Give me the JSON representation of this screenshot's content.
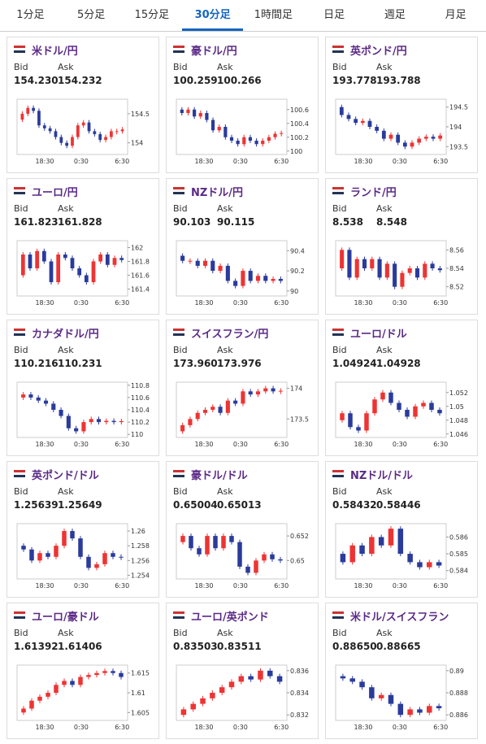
{
  "tabs": {
    "items": [
      "1分足",
      "5分足",
      "15分足",
      "30分足",
      "1時間足",
      "日足",
      "週足",
      "月足"
    ],
    "active": 3
  },
  "bid_label": "Bid",
  "ask_label": "Ask",
  "cards": [
    {
      "pair": "米ドル/円",
      "bid": "154.230",
      "ask": "154.232",
      "chart": {
        "type": "candlestick",
        "ylim": [
          153.8,
          154.75
        ],
        "yticks": [
          154.5,
          154
        ],
        "xticks": [
          "18:30",
          "0:30",
          "6:30"
        ],
        "closes": [
          154.4,
          154.5,
          154.6,
          154.55,
          154.3,
          154.25,
          154.2,
          154.1,
          154.0,
          153.95,
          154.1,
          154.3,
          154.35,
          154.2,
          154.15,
          154.05,
          154.1,
          154.2,
          154.2,
          154.23
        ]
      }
    },
    {
      "pair": "豪ドル/円",
      "bid": "100.259",
      "ask": "100.266",
      "chart": {
        "type": "candlestick",
        "ylim": [
          99.95,
          100.75
        ],
        "yticks": [
          100.6,
          100.4,
          100.2,
          100
        ],
        "xticks": [
          "18:30",
          "0:30",
          "6:30"
        ],
        "closes": [
          100.6,
          100.55,
          100.6,
          100.5,
          100.55,
          100.45,
          100.3,
          100.35,
          100.2,
          100.15,
          100.1,
          100.2,
          100.15,
          100.1,
          100.15,
          100.2,
          100.25,
          100.26
        ]
      }
    },
    {
      "pair": "英ポンド/円",
      "bid": "193.778",
      "ask": "193.788",
      "chart": {
        "type": "candlestick",
        "ylim": [
          193.3,
          194.7
        ],
        "yticks": [
          194.5,
          194,
          193.5
        ],
        "xticks": [
          "18:30",
          "0:30",
          "6:30"
        ],
        "closes": [
          194.5,
          194.3,
          194.2,
          194.1,
          194.15,
          194.0,
          193.9,
          193.7,
          193.8,
          193.6,
          193.5,
          193.6,
          193.7,
          193.75,
          193.7,
          193.78
        ]
      }
    },
    {
      "pair": "ユーロ/円",
      "bid": "161.823",
      "ask": "161.828",
      "chart": {
        "type": "candlestick",
        "ylim": [
          161.3,
          162.1
        ],
        "yticks": [
          162,
          161.8,
          161.6,
          161.4
        ],
        "xticks": [
          "18:30",
          "0:30",
          "6:30"
        ],
        "closes": [
          161.6,
          161.9,
          161.7,
          161.95,
          161.8,
          161.5,
          161.9,
          161.85,
          161.7,
          161.6,
          161.5,
          161.8,
          161.9,
          161.75,
          161.85,
          161.82
        ]
      }
    },
    {
      "pair": "NZドル/円",
      "bid": "90.103",
      "ask": "90.115",
      "chart": {
        "type": "candlestick",
        "ylim": [
          89.95,
          90.5
        ],
        "yticks": [
          90.4,
          90.2,
          90
        ],
        "xticks": [
          "18:30",
          "0:30",
          "6:30"
        ],
        "closes": [
          90.35,
          90.3,
          90.3,
          90.25,
          90.3,
          90.2,
          90.25,
          90.1,
          90.05,
          90.2,
          90.1,
          90.15,
          90.1,
          90.12,
          90.1
        ]
      }
    },
    {
      "pair": "ランド/円",
      "bid": "8.538",
      "ask": "8.548",
      "chart": {
        "type": "candlestick",
        "ylim": [
          8.51,
          8.57
        ],
        "yticks": [
          8.56,
          8.54,
          8.52
        ],
        "xticks": [
          "18:30",
          "0:30",
          "6:30"
        ],
        "closes": [
          8.54,
          8.56,
          8.53,
          8.55,
          8.54,
          8.55,
          8.53,
          8.545,
          8.52,
          8.535,
          8.54,
          8.53,
          8.545,
          8.54,
          8.538
        ]
      }
    },
    {
      "pair": "カナダドル/円",
      "bid": "110.216",
      "ask": "110.231",
      "chart": {
        "type": "candlestick",
        "ylim": [
          109.95,
          110.85
        ],
        "yticks": [
          110.8,
          110.6,
          110.4,
          110.2,
          110
        ],
        "xticks": [
          "18:30",
          "0:30",
          "6:30"
        ],
        "closes": [
          110.6,
          110.65,
          110.6,
          110.55,
          110.5,
          110.4,
          110.3,
          110.1,
          110.05,
          110.2,
          110.25,
          110.2,
          110.22,
          110.2,
          110.216
        ]
      }
    },
    {
      "pair": "スイスフラン/円",
      "bid": "173.960",
      "ask": "173.976",
      "chart": {
        "type": "candlestick",
        "ylim": [
          173.2,
          174.1
        ],
        "yticks": [
          174,
          173.5
        ],
        "xticks": [
          "18:30",
          "0:30",
          "6:30"
        ],
        "closes": [
          173.3,
          173.4,
          173.5,
          173.6,
          173.65,
          173.7,
          173.6,
          173.8,
          173.75,
          173.95,
          173.9,
          173.95,
          174.0,
          173.95,
          173.96
        ]
      }
    },
    {
      "pair": "ユーロ/ドル",
      "bid": "1.04924",
      "ask": "1.04928",
      "chart": {
        "type": "candlestick",
        "ylim": [
          1.0455,
          1.0535
        ],
        "yticks": [
          1.052,
          1.05,
          1.048,
          1.046
        ],
        "xticks": [
          "18:30",
          "0:30",
          "6:30"
        ],
        "closes": [
          1.048,
          1.049,
          1.047,
          1.0465,
          1.049,
          1.051,
          1.052,
          1.0505,
          1.0495,
          1.0485,
          1.05,
          1.0505,
          1.0495,
          1.049
        ]
      }
    },
    {
      "pair": "英ポンド/ドル",
      "bid": "1.25639",
      "ask": "1.25649",
      "chart": {
        "type": "candlestick",
        "ylim": [
          1.2535,
          1.261
        ],
        "yticks": [
          1.26,
          1.258,
          1.256,
          1.254
        ],
        "xticks": [
          "18:30",
          "0:30",
          "6:30"
        ],
        "closes": [
          1.258,
          1.2575,
          1.256,
          1.257,
          1.2565,
          1.258,
          1.26,
          1.259,
          1.2565,
          1.255,
          1.2555,
          1.257,
          1.2565,
          1.2564
        ]
      }
    },
    {
      "pair": "豪ドル/ドル",
      "bid": "0.65004",
      "ask": "0.65013",
      "chart": {
        "type": "candlestick",
        "ylim": [
          0.6485,
          0.653
        ],
        "yticks": [
          0.652,
          0.65
        ],
        "xticks": [
          "18:30",
          "0:30",
          "6:30"
        ],
        "closes": [
          0.6515,
          0.652,
          0.651,
          0.6505,
          0.652,
          0.651,
          0.652,
          0.6515,
          0.6495,
          0.649,
          0.65,
          0.6505,
          0.6501,
          0.65
        ]
      }
    },
    {
      "pair": "NZドル/ドル",
      "bid": "0.58432",
      "ask": "0.58446",
      "chart": {
        "type": "candlestick",
        "ylim": [
          0.5835,
          0.5868
        ],
        "yticks": [
          0.586,
          0.585,
          0.584
        ],
        "xticks": [
          "18:30",
          "0:30",
          "6:30"
        ],
        "closes": [
          0.585,
          0.5845,
          0.5855,
          0.585,
          0.586,
          0.5855,
          0.5865,
          0.585,
          0.5845,
          0.5842,
          0.5845,
          0.5843
        ]
      }
    },
    {
      "pair": "ユーロ/豪ドル",
      "bid": "1.61392",
      "ask": "1.61406",
      "chart": {
        "type": "candlestick",
        "ylim": [
          1.603,
          1.617
        ],
        "yticks": [
          1.615,
          1.61,
          1.605
        ],
        "xticks": [
          "18:30",
          "0:30",
          "6:30"
        ],
        "closes": [
          1.605,
          1.606,
          1.608,
          1.609,
          1.61,
          1.612,
          1.613,
          1.612,
          1.614,
          1.6145,
          1.615,
          1.6155,
          1.615,
          1.614
        ]
      }
    },
    {
      "pair": "ユーロ/英ポンド",
      "bid": "0.83503",
      "ask": "0.83511",
      "chart": {
        "type": "candlestick",
        "ylim": [
          0.8315,
          0.8365
        ],
        "yticks": [
          0.836,
          0.834,
          0.832
        ],
        "xticks": [
          "18:30",
          "0:30",
          "6:30"
        ],
        "closes": [
          0.832,
          0.8325,
          0.833,
          0.8335,
          0.834,
          0.8345,
          0.835,
          0.8355,
          0.8352,
          0.836,
          0.8355,
          0.835
        ]
      }
    },
    {
      "pair": "米ドル/スイスフラン",
      "bid": "0.88650",
      "ask": "0.88665",
      "chart": {
        "type": "candlestick",
        "ylim": [
          0.8855,
          0.8905
        ],
        "yticks": [
          0.89,
          0.888,
          0.886
        ],
        "xticks": [
          "18:30",
          "0:30",
          "6:30"
        ],
        "closes": [
          0.8895,
          0.8893,
          0.889,
          0.8885,
          0.8875,
          0.8878,
          0.887,
          0.886,
          0.8865,
          0.8862,
          0.8868,
          0.8866
        ]
      }
    }
  ]
}
